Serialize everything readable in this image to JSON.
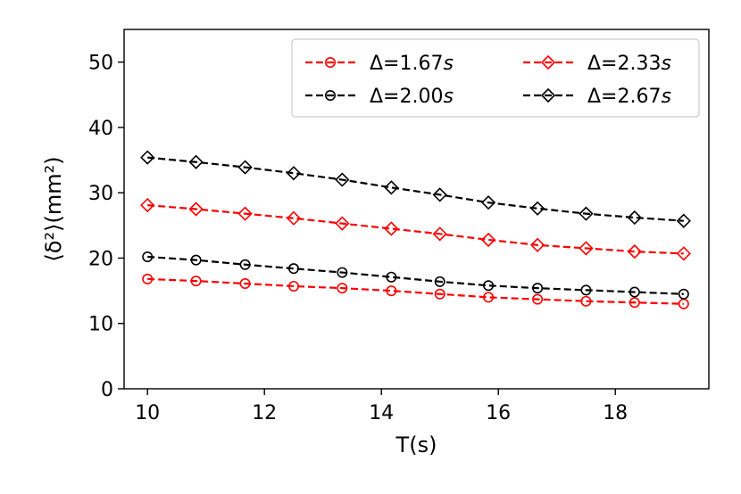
{
  "chart_data": {
    "type": "line",
    "xlabel": "T(s)",
    "ylabel": "⟨δ²⟩(mm²)",
    "xlim": [
      9.6,
      19.6
    ],
    "ylim": [
      0,
      55
    ],
    "xticks": [
      10,
      12,
      14,
      16,
      18
    ],
    "yticks": [
      0,
      10,
      20,
      30,
      40,
      50
    ],
    "grid": false,
    "legend_position": "top-right",
    "x": [
      10.0,
      10.83,
      11.67,
      12.5,
      13.33,
      14.17,
      15.0,
      15.83,
      16.67,
      17.5,
      18.33,
      19.17
    ],
    "series": [
      {
        "name": "Δ=1.67s",
        "label_main": "Δ=1.67",
        "label_unit": "s",
        "color": "#ff0000",
        "marker": "circle",
        "values": [
          16.8,
          16.5,
          16.1,
          15.7,
          15.4,
          15.0,
          14.5,
          14.0,
          13.7,
          13.4,
          13.2,
          13.0
        ]
      },
      {
        "name": "Δ=2.00s",
        "label_main": "Δ=2.00",
        "label_unit": "s",
        "color": "#000000",
        "marker": "circle",
        "values": [
          20.2,
          19.7,
          19.0,
          18.4,
          17.8,
          17.1,
          16.4,
          15.8,
          15.4,
          15.1,
          14.8,
          14.5
        ]
      },
      {
        "name": "Δ=2.33s",
        "label_main": "Δ=2.33",
        "label_unit": "s",
        "color": "#ff0000",
        "marker": "diamond",
        "values": [
          28.1,
          27.5,
          26.8,
          26.1,
          25.3,
          24.5,
          23.7,
          22.8,
          22.0,
          21.5,
          21.0,
          20.7
        ]
      },
      {
        "name": "Δ=2.67s",
        "label_main": "Δ=2.67",
        "label_unit": "s",
        "color": "#000000",
        "marker": "diamond",
        "values": [
          35.4,
          34.7,
          33.9,
          33.0,
          32.0,
          30.8,
          29.7,
          28.5,
          27.6,
          26.8,
          26.2,
          25.7
        ]
      }
    ]
  }
}
